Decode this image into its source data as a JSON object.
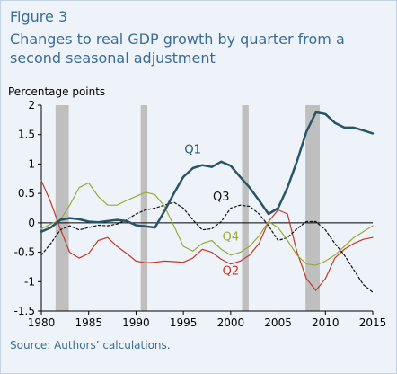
{
  "figure_label": "Figure 3",
  "title": "Changes to real GDP growth by quarter from a second seasonal adjustment",
  "source": "Source: Authors’ calculations.",
  "chart_data": {
    "type": "line",
    "ylabel": "Percentage points",
    "xlabel": "",
    "xlim": [
      1980,
      2015
    ],
    "ylim": [
      -1.5,
      2
    ],
    "xticks": [
      1980,
      1985,
      1990,
      1995,
      2000,
      2005,
      2010,
      2015
    ],
    "yticks": [
      -1.5,
      -1,
      -0.5,
      0,
      0.5,
      1,
      1.5,
      2
    ],
    "recessions": [
      [
        1981.5,
        1982.9
      ],
      [
        1990.5,
        1991.2
      ],
      [
        2001.2,
        2001.9
      ],
      [
        2007.9,
        2009.4
      ]
    ],
    "grid": false,
    "series": [
      {
        "name": "Q1",
        "color": "#285468",
        "dash": "solid",
        "width": 2.5,
        "x": [
          1980,
          1981,
          1982,
          1983,
          1984,
          1985,
          1986,
          1987,
          1988,
          1989,
          1990,
          1991,
          1992,
          1993,
          1994,
          1995,
          1996,
          1997,
          1998,
          1999,
          2000,
          2001,
          2002,
          2003,
          2004,
          2005,
          2006,
          2007,
          2008,
          2009,
          2010,
          2011,
          2012,
          2013,
          2014,
          2015
        ],
        "y": [
          -0.15,
          -0.08,
          0.05,
          0.08,
          0.06,
          0.02,
          0.01,
          0.03,
          0.05,
          0.03,
          -0.04,
          -0.06,
          -0.08,
          0.2,
          0.5,
          0.78,
          0.93,
          0.98,
          0.95,
          1.04,
          0.97,
          0.78,
          0.6,
          0.38,
          0.15,
          0.25,
          0.6,
          1.05,
          1.55,
          1.88,
          1.85,
          1.7,
          1.62,
          1.62,
          1.57,
          1.52
        ]
      },
      {
        "name": "Q2",
        "color": "#c0392b",
        "dash": "solid",
        "width": 1.2,
        "x": [
          1980,
          1981,
          1982,
          1983,
          1984,
          1985,
          1986,
          1987,
          1988,
          1989,
          1990,
          1991,
          1992,
          1993,
          1994,
          1995,
          1996,
          1997,
          1998,
          1999,
          2000,
          2001,
          2002,
          2003,
          2004,
          2005,
          2006,
          2007,
          2008,
          2009,
          2010,
          2011,
          2012,
          2013,
          2014,
          2015
        ],
        "y": [
          0.72,
          0.35,
          -0.1,
          -0.5,
          -0.6,
          -0.52,
          -0.3,
          -0.25,
          -0.4,
          -0.52,
          -0.65,
          -0.68,
          -0.67,
          -0.65,
          -0.66,
          -0.67,
          -0.6,
          -0.45,
          -0.5,
          -0.62,
          -0.7,
          -0.65,
          -0.55,
          -0.35,
          0.02,
          0.22,
          0.15,
          -0.5,
          -0.95,
          -1.15,
          -0.95,
          -0.6,
          -0.45,
          -0.35,
          -0.28,
          -0.25
        ]
      },
      {
        "name": "Q3",
        "color": "#111111",
        "dash": "dotted",
        "width": 1.2,
        "x": [
          1980,
          1981,
          1982,
          1983,
          1984,
          1985,
          1986,
          1987,
          1988,
          1989,
          1990,
          1991,
          1992,
          1993,
          1994,
          1995,
          1996,
          1997,
          1998,
          1999,
          2000,
          2001,
          2002,
          2003,
          2004,
          2005,
          2006,
          2007,
          2008,
          2009,
          2010,
          2011,
          2012,
          2013,
          2014,
          2015
        ],
        "y": [
          -0.55,
          -0.35,
          -0.12,
          -0.05,
          -0.12,
          -0.08,
          -0.04,
          -0.05,
          -0.02,
          0.05,
          0.15,
          0.22,
          0.25,
          0.3,
          0.35,
          0.25,
          0.05,
          -0.12,
          -0.1,
          0.02,
          0.25,
          0.3,
          0.28,
          0.15,
          -0.05,
          -0.3,
          -0.25,
          -0.1,
          0.02,
          0.02,
          -0.12,
          -0.35,
          -0.55,
          -0.8,
          -1.05,
          -1.18
        ]
      },
      {
        "name": "Q4",
        "color": "#9aaa35",
        "dash": "solid",
        "width": 1.2,
        "x": [
          1980,
          1981,
          1982,
          1983,
          1984,
          1985,
          1986,
          1987,
          1988,
          1989,
          1990,
          1991,
          1992,
          1993,
          1994,
          1995,
          1996,
          1997,
          1998,
          1999,
          2000,
          2001,
          2002,
          2003,
          2004,
          2005,
          2006,
          2007,
          2008,
          2009,
          2010,
          2011,
          2012,
          2013,
          2014,
          2015
        ],
        "y": [
          -0.1,
          -0.02,
          0.05,
          0.3,
          0.6,
          0.68,
          0.45,
          0.3,
          0.3,
          0.38,
          0.45,
          0.52,
          0.48,
          0.28,
          -0.05,
          -0.4,
          -0.48,
          -0.35,
          -0.3,
          -0.45,
          -0.55,
          -0.5,
          -0.4,
          -0.22,
          0.02,
          -0.08,
          -0.3,
          -0.55,
          -0.7,
          -0.72,
          -0.65,
          -0.55,
          -0.4,
          -0.25,
          -0.15,
          -0.05
        ]
      }
    ],
    "annotations": [
      {
        "text": "Q1",
        "x": 1996.0,
        "y": 1.18,
        "color": "#285468"
      },
      {
        "text": "Q3",
        "x": 1999.0,
        "y": 0.38,
        "color": "#111111"
      },
      {
        "text": "Q4",
        "x": 2000.0,
        "y": -0.3,
        "color": "#9aaa35"
      },
      {
        "text": "Q2",
        "x": 2000.0,
        "y": -0.88,
        "color": "#c0392b"
      }
    ]
  }
}
